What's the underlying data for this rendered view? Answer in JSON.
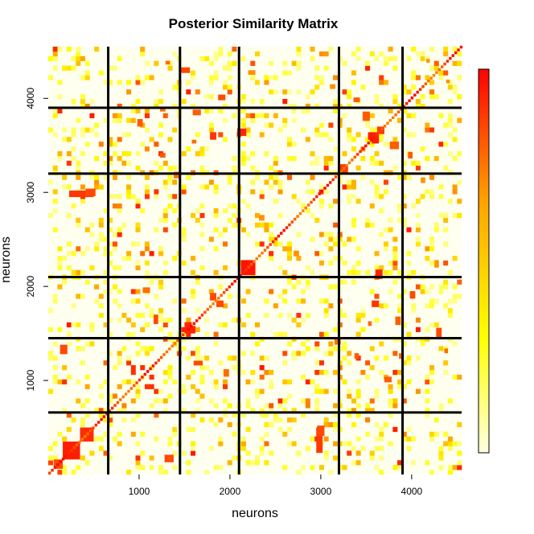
{
  "chart_data": {
    "type": "heatmap",
    "title": "Posterior Similarity Matrix",
    "xlabel": "neurons",
    "ylabel": "neurons",
    "xlim": [
      0,
      4550
    ],
    "ylim": [
      0,
      4550
    ],
    "x_ticks": [
      1000,
      2000,
      3000,
      4000
    ],
    "y_ticks": [
      1000,
      2000,
      3000,
      4000
    ],
    "value_range": [
      0,
      1
    ],
    "cluster_boundaries": [
      660,
      1450,
      2100,
      3200,
      3900
    ],
    "grid": false,
    "colorscale": {
      "name": "heat",
      "low_color": "#ffffe0",
      "mid_color": "#ffff00",
      "high_color": "#ff0000",
      "placement": "right"
    },
    "boundary_color": "#000000"
  }
}
